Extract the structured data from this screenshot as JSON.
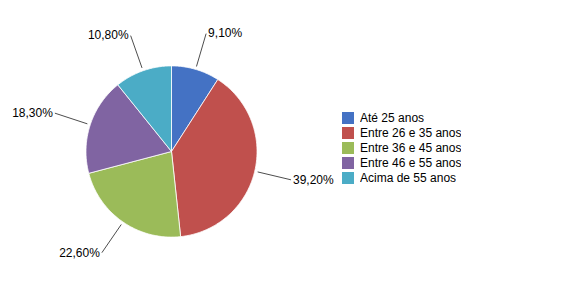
{
  "chart_data": {
    "type": "pie",
    "categories": [
      "Até 25 anos",
      "Entre 26 e 35 anos",
      "Entre 36 e 45 anos",
      "Entre 46 e 55 anos",
      "Acima de 55 anos"
    ],
    "values": [
      9.1,
      39.2,
      22.6,
      18.3,
      10.8
    ],
    "value_labels": [
      "9,10%",
      "39,20%",
      "22,60%",
      "18,30%",
      "10,80%"
    ],
    "colors": [
      "#4472C4",
      "#C0504D",
      "#9BBB59",
      "#8064A2",
      "#4BACC6"
    ],
    "data_labels": true,
    "legend": "right"
  }
}
